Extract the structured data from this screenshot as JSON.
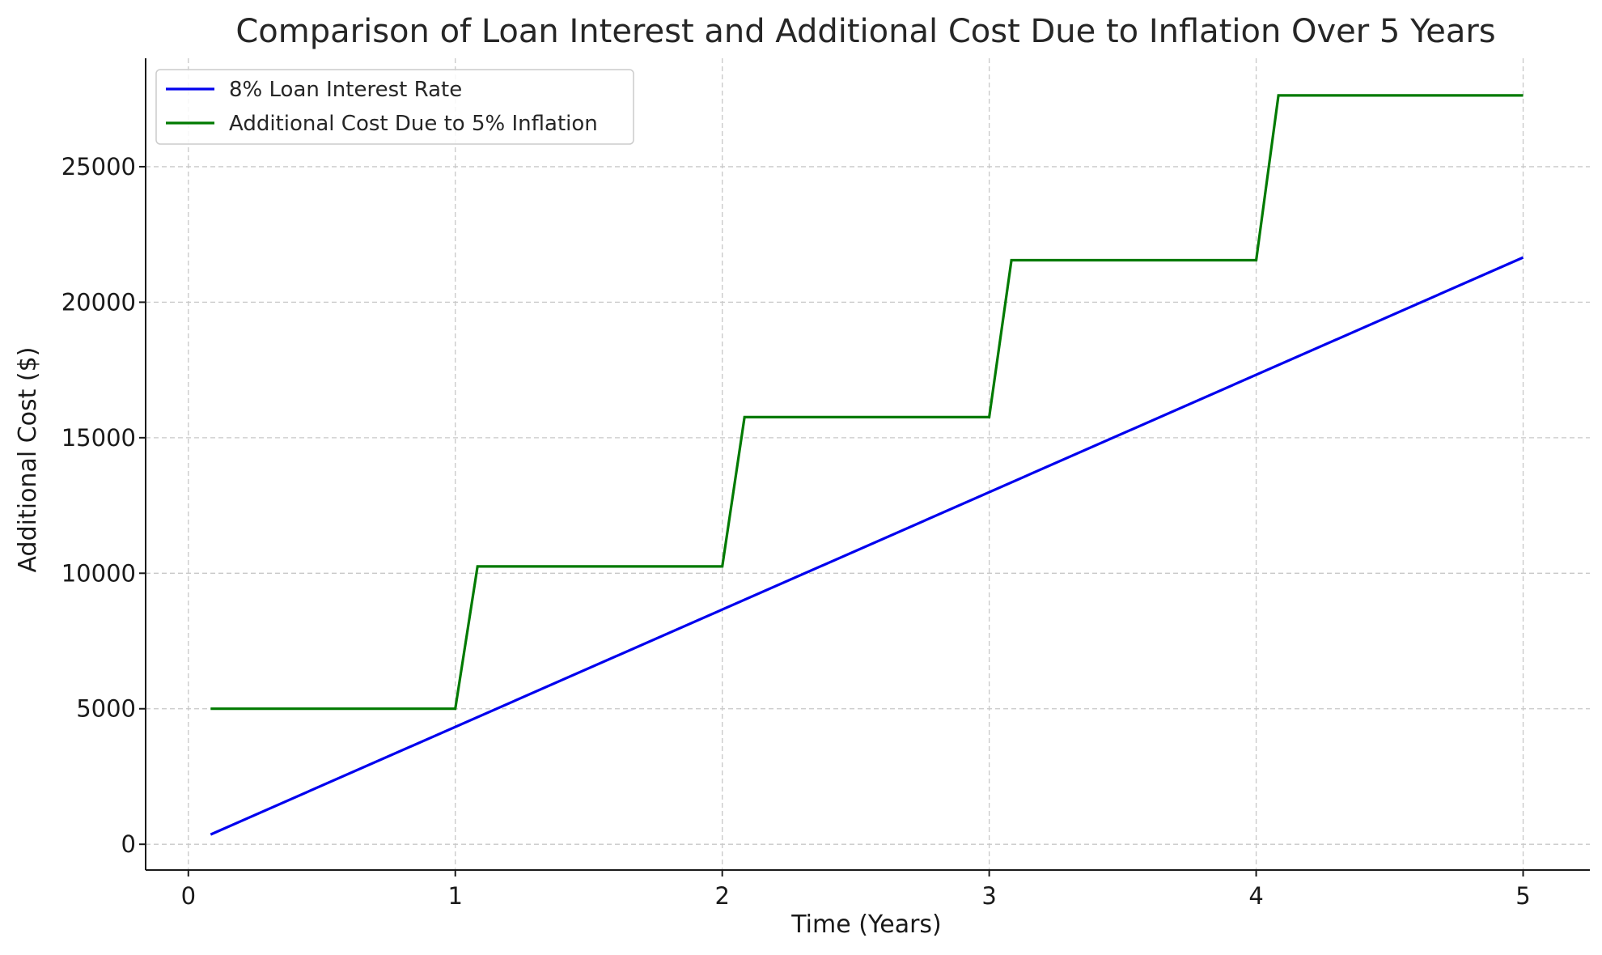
{
  "chart_data": {
    "type": "line",
    "title": "Comparison of Loan Interest and Additional Cost Due to Inflation Over 5 Years",
    "xlabel": "Time (Years)",
    "ylabel": "Additional Cost ($)",
    "xlim": [
      -0.16,
      5.25
    ],
    "ylim": [
      -950,
      29000
    ],
    "xticks": [
      0,
      1,
      2,
      3,
      4,
      5
    ],
    "yticks": [
      0,
      5000,
      10000,
      15000,
      20000,
      25000
    ],
    "xtick_labels": [
      "0",
      "1",
      "2",
      "3",
      "4",
      "5"
    ],
    "ytick_labels": [
      "0",
      "5000",
      "10000",
      "15000",
      "20000",
      "25000"
    ],
    "grid": true,
    "legend_position": "top-left",
    "series": [
      {
        "name": "8% Loan Interest Rate",
        "color": "#0000ee",
        "x": [
          0.0833,
          5.0
        ],
        "y": [
          360,
          21650
        ]
      },
      {
        "name": "Additional Cost Due to 5% Inflation",
        "color": "#007a00",
        "x": [
          0.0833,
          1.0,
          1.0833,
          2.0,
          2.0833,
          3.0,
          3.0833,
          4.0,
          4.0833,
          5.0
        ],
        "y": [
          5000,
          5000,
          10250,
          10250,
          15760,
          15760,
          21550,
          21550,
          27630,
          27630
        ]
      }
    ]
  }
}
